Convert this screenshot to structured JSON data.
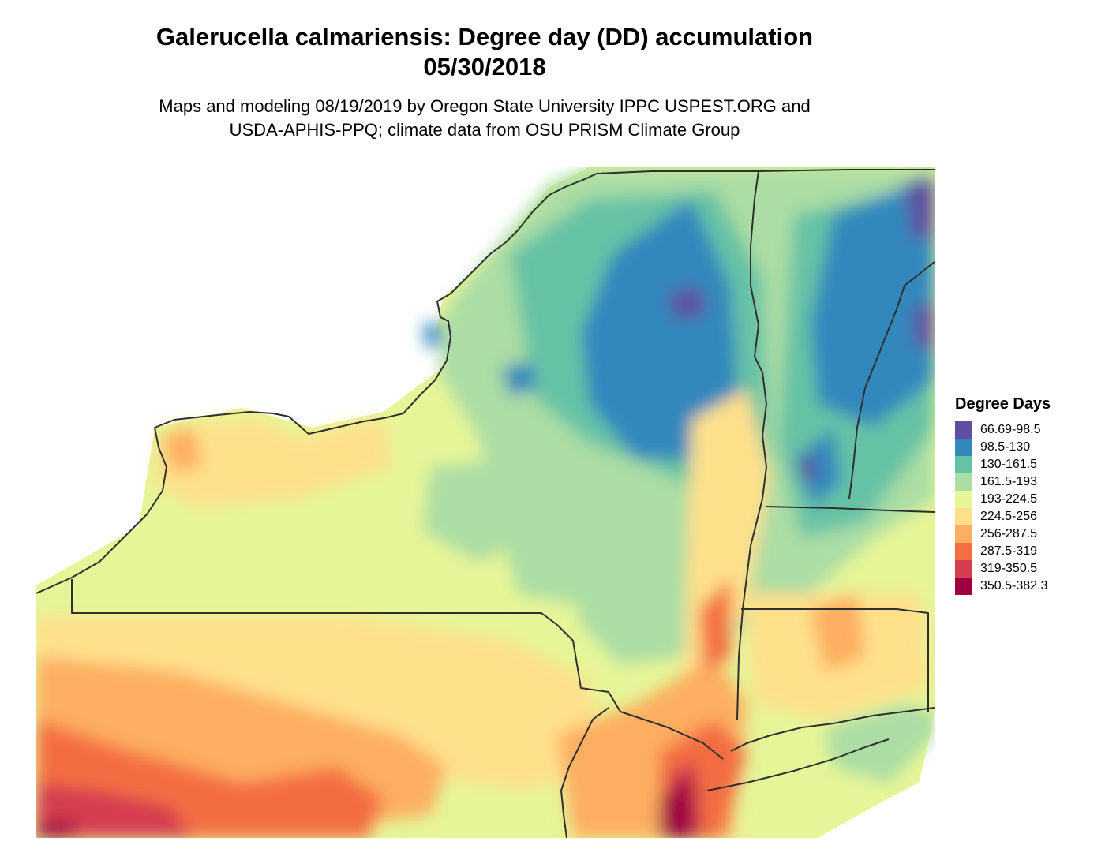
{
  "map": {
    "title_line1": "Galerucella calmariensis: Degree day (DD) accumulation",
    "title_line2": "05/30/2018",
    "subtitle_line1": "Maps and modeling 08/19/2019 by Oregon State University IPPC USPEST.ORG and",
    "subtitle_line2": "USDA-APHIS-PPQ; climate data from OSU PRISM Climate Group",
    "region": "New York, northern Pennsylvania, New Jersey, Vermont, Connecticut",
    "palette": "Spectral (reversed)"
  },
  "legend": {
    "title": "Degree Days",
    "items": [
      {
        "label": "66.69-98.5",
        "color": "#5e4fa2"
      },
      {
        "label": "98.5-130",
        "color": "#3288bd"
      },
      {
        "label": "130-161.5",
        "color": "#66c2a5"
      },
      {
        "label": "161.5-193",
        "color": "#abdda4"
      },
      {
        "label": "193-224.5",
        "color": "#e6f598"
      },
      {
        "label": "224.5-256",
        "color": "#fee08b"
      },
      {
        "label": "256-287.5",
        "color": "#fdae61"
      },
      {
        "label": "287.5-319",
        "color": "#f46d43"
      },
      {
        "label": "319-350.5",
        "color": "#d53e4f"
      },
      {
        "label": "350.5-382.3",
        "color": "#9e0142"
      }
    ]
  }
}
